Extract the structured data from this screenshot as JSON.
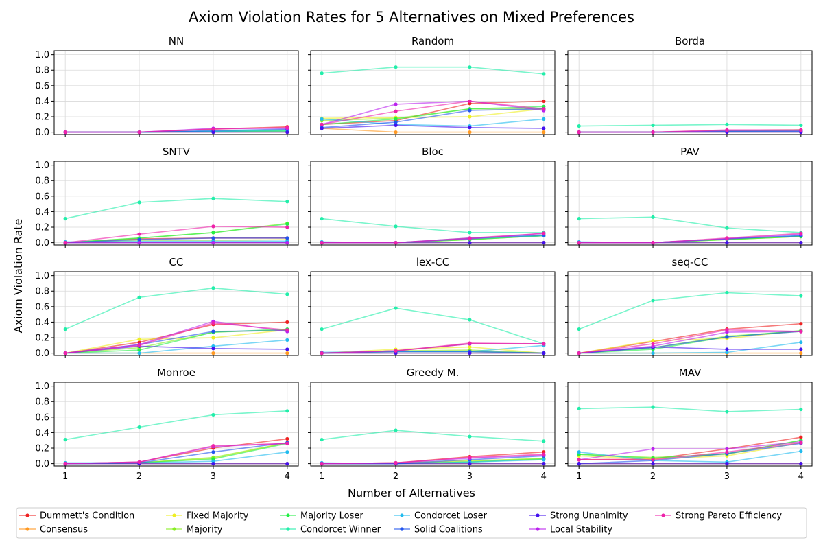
{
  "title": "Axiom Violation Rates for 5 Alternatives on Mixed Preferences",
  "xlabel": "Number of Alternatives",
  "ylabel": "Axiom Violation Rate",
  "colors": {
    "grid": "#d9d9d9",
    "axis": "#000000"
  },
  "legend": {
    "placement": "bottom",
    "entries": [
      {
        "label": "Dummett's Condition",
        "color": "#ee2222"
      },
      {
        "label": "Consensus",
        "color": "#ff9922"
      },
      {
        "label": "Fixed Majority",
        "color": "#eeee22"
      },
      {
        "label": "Majority",
        "color": "#88ee22"
      },
      {
        "label": "Majority Loser",
        "color": "#22ee44"
      },
      {
        "label": "Condorcet Winner",
        "color": "#22eeaa"
      },
      {
        "label": "Condorcet Loser",
        "color": "#22bbee"
      },
      {
        "label": "Solid Coalitions",
        "color": "#2255ee"
      },
      {
        "label": "Strong Unanimity",
        "color": "#4411ee"
      },
      {
        "label": "Local Stability",
        "color": "#bb22ee"
      },
      {
        "label": "Strong Pareto Efficiency",
        "color": "#ee22aa"
      }
    ]
  },
  "chart_data": {
    "type": "line",
    "x": [
      1,
      2,
      3,
      4
    ],
    "xticks": [
      "1",
      "2",
      "3",
      "4"
    ],
    "yticks": [
      "0.0",
      "0.2",
      "0.4",
      "0.6",
      "0.8",
      "1.0"
    ],
    "ylim": [
      -0.03,
      1.05
    ],
    "xlim": [
      0.85,
      4.15
    ],
    "grid": true,
    "series_names": [
      "Dummett's Condition",
      "Consensus",
      "Fixed Majority",
      "Majority",
      "Majority Loser",
      "Condorcet Winner",
      "Condorcet Loser",
      "Solid Coalitions",
      "Strong Unanimity",
      "Local Stability",
      "Strong Pareto Efficiency"
    ],
    "panels": [
      {
        "title": "NN",
        "series": [
          [
            0.0,
            0.0,
            0.04,
            0.07
          ],
          [
            0.0,
            0.0,
            0.0,
            0.0
          ],
          [
            0.0,
            0.0,
            0.01,
            0.03
          ],
          [
            0.0,
            0.0,
            0.01,
            0.02
          ],
          [
            0.0,
            0.0,
            0.01,
            0.01
          ],
          [
            0.0,
            0.0,
            0.01,
            0.02
          ],
          [
            0.0,
            0.0,
            0.01,
            0.03
          ],
          [
            0.0,
            0.0,
            0.02,
            0.04
          ],
          [
            0.0,
            0.0,
            0.0,
            0.0
          ],
          [
            0.0,
            0.0,
            0.05,
            0.05
          ],
          [
            0.0,
            0.0,
            0.04,
            0.06
          ]
        ]
      },
      {
        "title": "Random",
        "series": [
          [
            0.1,
            0.15,
            0.37,
            0.4
          ],
          [
            0.05,
            0.0,
            0.0,
            0.0
          ],
          [
            0.18,
            0.19,
            0.2,
            0.3
          ],
          [
            0.15,
            0.18,
            0.3,
            0.3
          ],
          [
            0.1,
            0.17,
            0.3,
            0.33
          ],
          [
            0.76,
            0.84,
            0.84,
            0.75
          ],
          [
            0.17,
            0.1,
            0.08,
            0.17
          ],
          [
            0.06,
            0.13,
            0.28,
            0.3
          ],
          [
            0.05,
            0.09,
            0.06,
            0.05
          ],
          [
            0.1,
            0.36,
            0.4,
            0.28
          ],
          [
            0.1,
            0.27,
            0.4,
            0.3
          ]
        ]
      },
      {
        "title": "Borda",
        "series": [
          [
            0.0,
            0.0,
            0.02,
            0.03
          ],
          [
            0.0,
            0.0,
            0.0,
            0.0
          ],
          [
            0.0,
            0.0,
            0.01,
            0.02
          ],
          [
            0.0,
            0.0,
            0.02,
            0.03
          ],
          [
            0.0,
            0.0,
            0.01,
            0.02
          ],
          [
            0.08,
            0.09,
            0.1,
            0.09
          ],
          [
            0.0,
            0.0,
            0.01,
            0.01
          ],
          [
            0.0,
            0.0,
            0.01,
            0.01
          ],
          [
            0.0,
            0.0,
            0.0,
            0.0
          ],
          [
            0.0,
            0.0,
            0.02,
            0.02
          ],
          [
            0.0,
            0.0,
            0.03,
            0.03
          ]
        ]
      },
      {
        "title": "SNTV",
        "series": [
          [
            0.0,
            0.05,
            0.06,
            0.06
          ],
          [
            0.0,
            0.0,
            0.0,
            0.0
          ],
          [
            0.0,
            0.03,
            0.03,
            0.04
          ],
          [
            0.0,
            0.06,
            0.13,
            0.25
          ],
          [
            0.0,
            0.06,
            0.13,
            0.24
          ],
          [
            0.31,
            0.52,
            0.57,
            0.53
          ],
          [
            0.01,
            0.02,
            0.02,
            0.02
          ],
          [
            0.0,
            0.04,
            0.06,
            0.06
          ],
          [
            0.0,
            0.0,
            0.0,
            0.0
          ],
          [
            0.0,
            0.0,
            0.0,
            0.0
          ],
          [
            0.0,
            0.11,
            0.21,
            0.2
          ]
        ]
      },
      {
        "title": "Bloc",
        "series": [
          [
            0.0,
            0.0,
            0.05,
            0.09
          ],
          [
            0.0,
            0.0,
            0.0,
            0.0
          ],
          [
            0.0,
            0.0,
            0.04,
            0.09
          ],
          [
            0.0,
            0.0,
            0.04,
            0.09
          ],
          [
            0.0,
            0.0,
            0.04,
            0.09
          ],
          [
            0.31,
            0.21,
            0.13,
            0.13
          ],
          [
            0.01,
            0.0,
            0.05,
            0.09
          ],
          [
            0.0,
            0.0,
            0.06,
            0.1
          ],
          [
            0.0,
            0.0,
            0.0,
            0.0
          ],
          [
            0.0,
            0.0,
            0.05,
            0.12
          ],
          [
            0.0,
            0.0,
            0.06,
            0.12
          ]
        ]
      },
      {
        "title": "PAV",
        "series": [
          [
            0.0,
            0.0,
            0.05,
            0.08
          ],
          [
            0.0,
            0.0,
            0.0,
            0.0
          ],
          [
            0.0,
            0.0,
            0.04,
            0.08
          ],
          [
            0.0,
            0.0,
            0.04,
            0.08
          ],
          [
            0.0,
            0.0,
            0.04,
            0.08
          ],
          [
            0.31,
            0.33,
            0.19,
            0.13
          ],
          [
            0.01,
            0.0,
            0.05,
            0.09
          ],
          [
            0.0,
            0.0,
            0.05,
            0.09
          ],
          [
            0.0,
            0.0,
            0.0,
            0.0
          ],
          [
            0.0,
            0.0,
            0.05,
            0.11
          ],
          [
            0.0,
            0.0,
            0.06,
            0.12
          ]
        ]
      },
      {
        "title": "CC",
        "series": [
          [
            0.0,
            0.14,
            0.37,
            0.4
          ],
          [
            0.0,
            0.0,
            0.0,
            0.0
          ],
          [
            0.0,
            0.18,
            0.2,
            0.3
          ],
          [
            0.0,
            0.07,
            0.27,
            0.3
          ],
          [
            0.0,
            0.04,
            0.27,
            0.31
          ],
          [
            0.31,
            0.72,
            0.84,
            0.76
          ],
          [
            0.0,
            0.0,
            0.09,
            0.17
          ],
          [
            0.0,
            0.11,
            0.28,
            0.29
          ],
          [
            0.0,
            0.09,
            0.06,
            0.05
          ],
          [
            0.0,
            0.11,
            0.41,
            0.28
          ],
          [
            0.0,
            0.1,
            0.39,
            0.3
          ]
        ]
      },
      {
        "title": "lex-CC",
        "series": [
          [
            0.0,
            0.03,
            0.12,
            0.12
          ],
          [
            0.0,
            0.0,
            0.0,
            0.0
          ],
          [
            0.0,
            0.05,
            0.08,
            0.0
          ],
          [
            0.0,
            0.03,
            0.04,
            0.0
          ],
          [
            0.0,
            0.02,
            0.02,
            0.0
          ],
          [
            0.31,
            0.58,
            0.43,
            0.12
          ],
          [
            0.01,
            0.02,
            0.02,
            0.1
          ],
          [
            0.0,
            0.02,
            0.02,
            0.0
          ],
          [
            0.0,
            0.0,
            0.0,
            0.0
          ],
          [
            0.0,
            0.03,
            0.12,
            0.12
          ],
          [
            0.0,
            0.03,
            0.13,
            0.12
          ]
        ]
      },
      {
        "title": "seq-CC",
        "series": [
          [
            0.0,
            0.15,
            0.31,
            0.38
          ],
          [
            0.0,
            0.0,
            0.0,
            0.0
          ],
          [
            0.0,
            0.16,
            0.19,
            0.29
          ],
          [
            0.0,
            0.07,
            0.22,
            0.28
          ],
          [
            0.0,
            0.05,
            0.21,
            0.29
          ],
          [
            0.31,
            0.68,
            0.78,
            0.74
          ],
          [
            0.0,
            0.0,
            0.01,
            0.14
          ],
          [
            0.0,
            0.07,
            0.21,
            0.28
          ],
          [
            0.0,
            0.08,
            0.05,
            0.05
          ],
          [
            0.0,
            0.09,
            0.27,
            0.28
          ],
          [
            0.0,
            0.12,
            0.3,
            0.28
          ]
        ]
      },
      {
        "title": "Monroe",
        "series": [
          [
            0.0,
            0.02,
            0.2,
            0.32
          ],
          [
            0.0,
            0.0,
            0.0,
            0.0
          ],
          [
            0.0,
            0.01,
            0.07,
            0.27
          ],
          [
            0.0,
            0.01,
            0.08,
            0.27
          ],
          [
            0.0,
            0.01,
            0.06,
            0.26
          ],
          [
            0.31,
            0.47,
            0.63,
            0.68
          ],
          [
            0.01,
            0.01,
            0.03,
            0.15
          ],
          [
            0.0,
            0.01,
            0.15,
            0.27
          ],
          [
            0.0,
            0.0,
            0.0,
            0.0
          ],
          [
            0.0,
            0.02,
            0.22,
            0.26
          ],
          [
            0.0,
            0.02,
            0.23,
            0.26
          ]
        ]
      },
      {
        "title": "Greedy M.",
        "series": [
          [
            0.0,
            0.01,
            0.09,
            0.15
          ],
          [
            0.0,
            0.0,
            0.0,
            0.0
          ],
          [
            0.0,
            0.01,
            0.04,
            0.06
          ],
          [
            0.0,
            0.0,
            0.03,
            0.07
          ],
          [
            0.0,
            0.0,
            0.02,
            0.06
          ],
          [
            0.31,
            0.43,
            0.35,
            0.29
          ],
          [
            0.01,
            0.0,
            0.02,
            0.05
          ],
          [
            0.0,
            0.0,
            0.05,
            0.1
          ],
          [
            0.0,
            0.0,
            0.0,
            0.0
          ],
          [
            0.0,
            0.01,
            0.07,
            0.11
          ],
          [
            0.0,
            0.01,
            0.08,
            0.12
          ]
        ]
      },
      {
        "title": "MAV",
        "series": [
          [
            0.05,
            0.06,
            0.19,
            0.34
          ],
          [
            0.0,
            0.0,
            0.0,
            0.0
          ],
          [
            0.1,
            0.06,
            0.1,
            0.27
          ],
          [
            0.12,
            0.08,
            0.12,
            0.3
          ],
          [
            0.12,
            0.07,
            0.13,
            0.3
          ],
          [
            0.71,
            0.73,
            0.67,
            0.7
          ],
          [
            0.15,
            0.04,
            0.02,
            0.16
          ],
          [
            0.0,
            0.04,
            0.13,
            0.26
          ],
          [
            0.0,
            0.0,
            0.0,
            0.0
          ],
          [
            0.05,
            0.19,
            0.19,
            0.28
          ],
          [
            0.05,
            0.05,
            0.15,
            0.27
          ]
        ]
      }
    ]
  }
}
